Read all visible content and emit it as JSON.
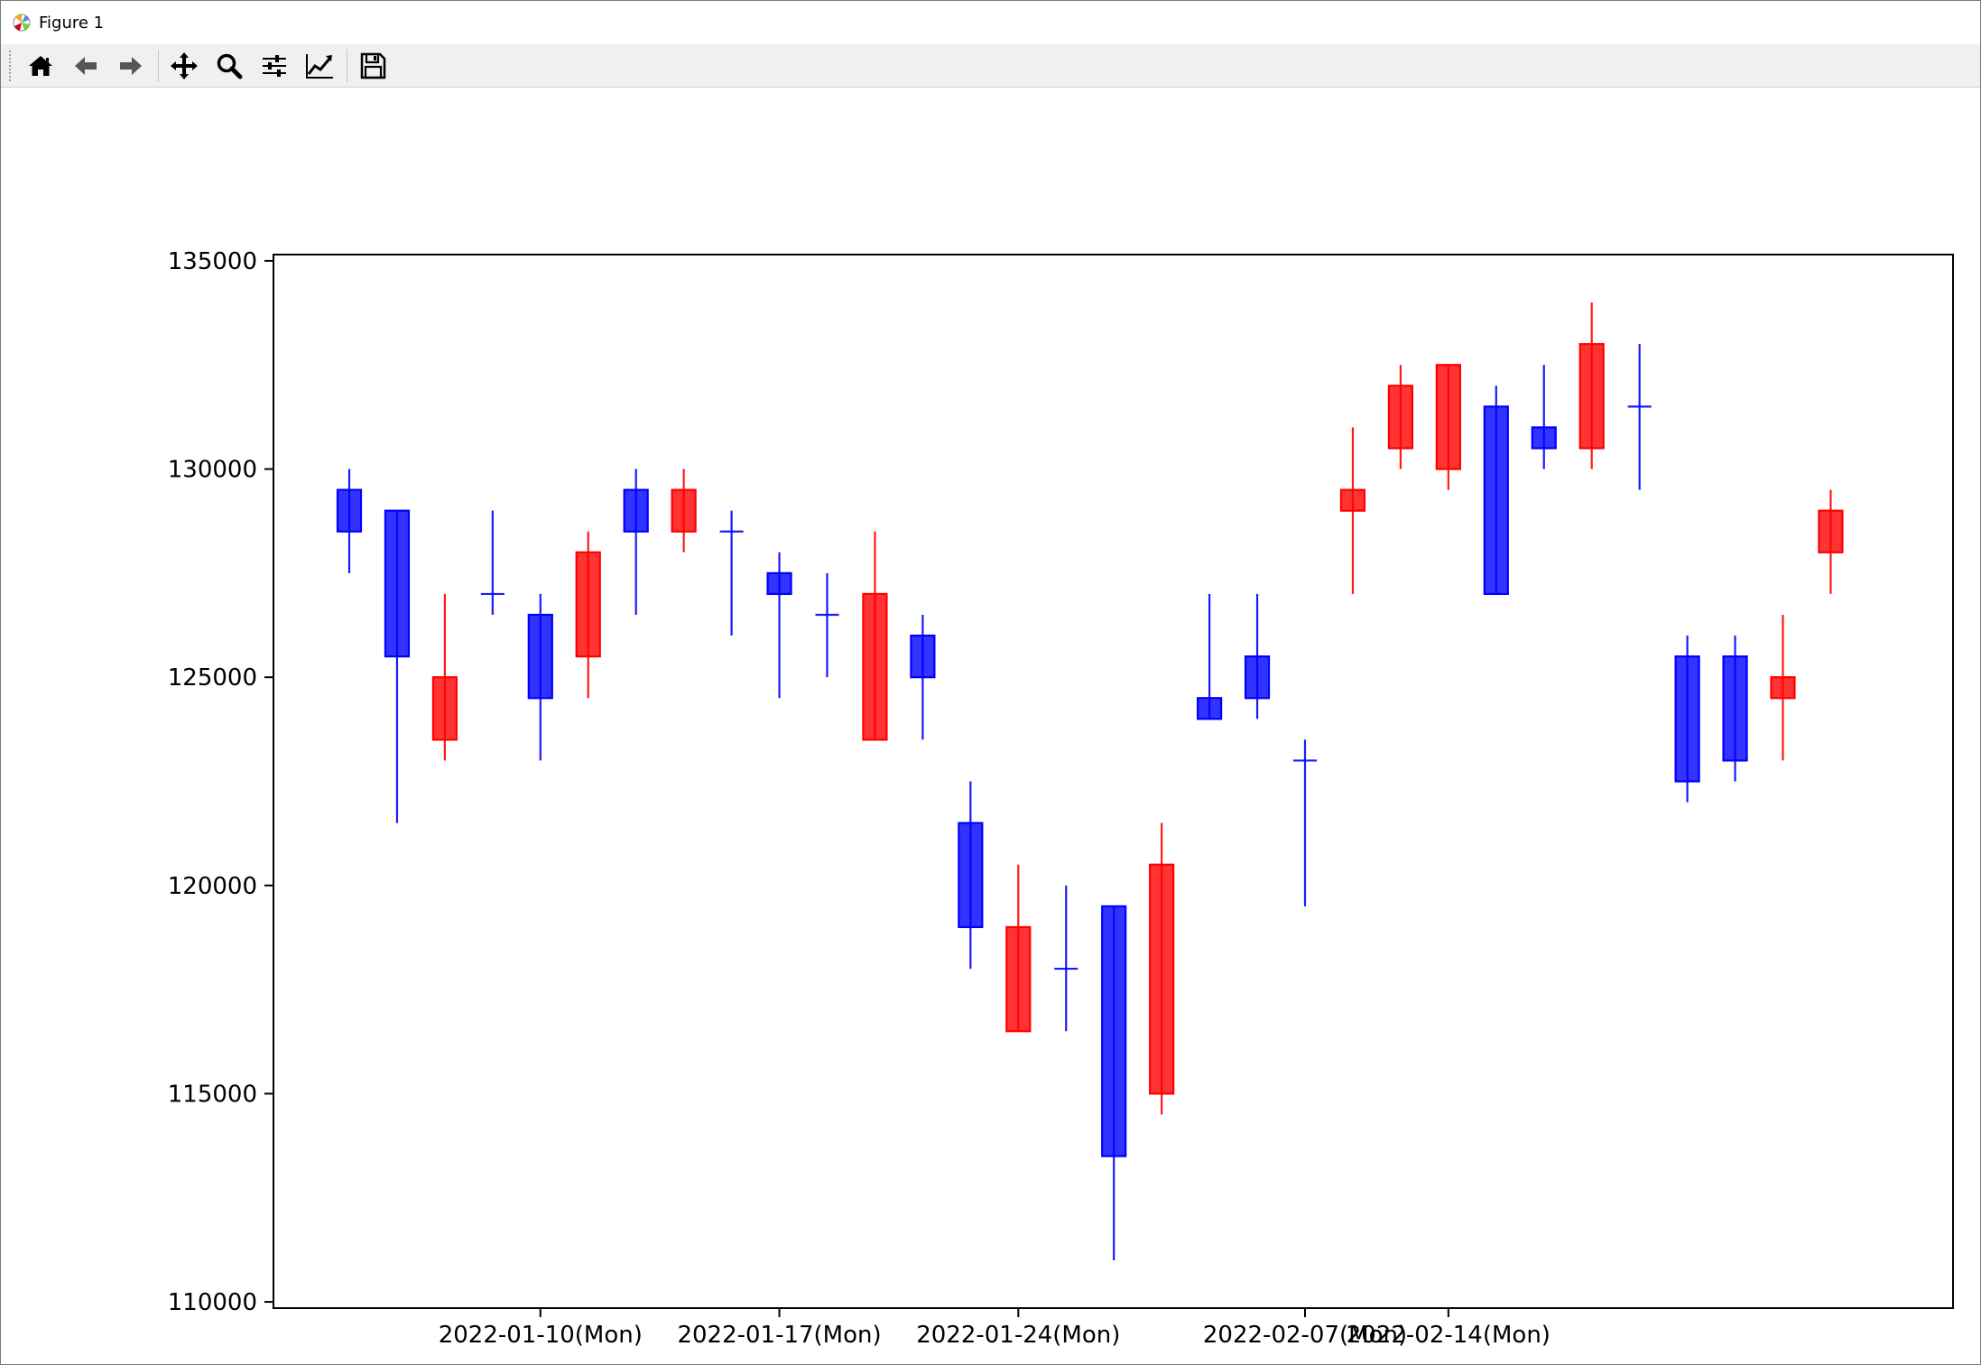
{
  "window": {
    "title": "Figure 1"
  },
  "toolbar": {
    "buttons": [
      {
        "name": "home-icon",
        "tooltip": "Home"
      },
      {
        "name": "back-icon",
        "tooltip": "Back"
      },
      {
        "name": "forward-icon",
        "tooltip": "Forward"
      },
      {
        "name": "pan-icon",
        "tooltip": "Pan"
      },
      {
        "name": "zoom-icon",
        "tooltip": "Zoom"
      },
      {
        "name": "configure-subplots-icon",
        "tooltip": "Subplots"
      },
      {
        "name": "edit-axis-icon",
        "tooltip": "Customize"
      },
      {
        "name": "save-icon",
        "tooltip": "Save"
      }
    ]
  },
  "colors": {
    "up": "#ff0000",
    "down": "#0000ff"
  },
  "chart_data": {
    "type": "candlestick",
    "title": "",
    "xlabel": "",
    "ylabel": "",
    "ylim": [
      110000,
      135000
    ],
    "yticks": [
      110000,
      115000,
      120000,
      125000,
      130000,
      135000
    ],
    "xticks": [
      {
        "index": 4,
        "label": "2022-01-10(Mon)"
      },
      {
        "index": 9,
        "label": "2022-01-17(Mon)"
      },
      {
        "index": 14,
        "label": "2022-01-24(Mon)"
      },
      {
        "index": 20,
        "label": "2022-02-07(Mon)"
      },
      {
        "index": 23,
        "label": "2022-02-14(Mon)"
      }
    ],
    "grid": false,
    "candles": [
      {
        "index": 0,
        "open": 128500,
        "high": 130000,
        "low": 127500,
        "close": 129500,
        "color": "down"
      },
      {
        "index": 1,
        "open": 129000,
        "high": 129000,
        "low": 121500,
        "close": 125500,
        "color": "down"
      },
      {
        "index": 2,
        "open": 123500,
        "high": 127000,
        "low": 123000,
        "close": 125000,
        "color": "up"
      },
      {
        "index": 3,
        "open": 127000,
        "high": 129000,
        "low": 126500,
        "close": 127000,
        "color": "down"
      },
      {
        "index": 4,
        "open": 126500,
        "high": 127000,
        "low": 123000,
        "close": 124500,
        "color": "down"
      },
      {
        "index": 5,
        "open": 125500,
        "high": 128500,
        "low": 124500,
        "close": 128000,
        "color": "up"
      },
      {
        "index": 6,
        "open": 128500,
        "high": 130000,
        "low": 126500,
        "close": 129500,
        "color": "down"
      },
      {
        "index": 7,
        "open": 128500,
        "high": 130000,
        "low": 128000,
        "close": 129500,
        "color": "up"
      },
      {
        "index": 8,
        "open": 128500,
        "high": 129000,
        "low": 126000,
        "close": 128500,
        "color": "down"
      },
      {
        "index": 9,
        "open": 127500,
        "high": 128000,
        "low": 124500,
        "close": 127000,
        "color": "down"
      },
      {
        "index": 10,
        "open": 126500,
        "high": 127500,
        "low": 125000,
        "close": 126500,
        "color": "down"
      },
      {
        "index": 11,
        "open": 123500,
        "high": 128500,
        "low": 123500,
        "close": 127000,
        "color": "up"
      },
      {
        "index": 12,
        "open": 126000,
        "high": 126500,
        "low": 123500,
        "close": 125000,
        "color": "down"
      },
      {
        "index": 13,
        "open": 121500,
        "high": 122500,
        "low": 118000,
        "close": 119000,
        "color": "down"
      },
      {
        "index": 14,
        "open": 116500,
        "high": 120500,
        "low": 116500,
        "close": 119000,
        "color": "up"
      },
      {
        "index": 15,
        "open": 118000,
        "high": 120000,
        "low": 116500,
        "close": 118000,
        "color": "down"
      },
      {
        "index": 16,
        "open": 119500,
        "high": 119500,
        "low": 111000,
        "close": 113500,
        "color": "down"
      },
      {
        "index": 17,
        "open": 115000,
        "high": 121500,
        "low": 114500,
        "close": 120500,
        "color": "up"
      },
      {
        "index": 18,
        "open": 124500,
        "high": 127000,
        "low": 124000,
        "close": 124000,
        "color": "down"
      },
      {
        "index": 19,
        "open": 125500,
        "high": 127000,
        "low": 124000,
        "close": 124500,
        "color": "down"
      },
      {
        "index": 20,
        "open": 123000,
        "high": 123500,
        "low": 119500,
        "close": 123000,
        "color": "down"
      },
      {
        "index": 21,
        "open": 129000,
        "high": 131000,
        "low": 127000,
        "close": 129500,
        "color": "up"
      },
      {
        "index": 22,
        "open": 130500,
        "high": 132500,
        "low": 130000,
        "close": 132000,
        "color": "up"
      },
      {
        "index": 23,
        "open": 130000,
        "high": 132500,
        "low": 129500,
        "close": 132500,
        "color": "up"
      },
      {
        "index": 24,
        "open": 131500,
        "high": 132000,
        "low": 127000,
        "close": 127000,
        "color": "down"
      },
      {
        "index": 25,
        "open": 131000,
        "high": 132500,
        "low": 130000,
        "close": 130500,
        "color": "down"
      },
      {
        "index": 26,
        "open": 130500,
        "high": 134000,
        "low": 130000,
        "close": 133000,
        "color": "up"
      },
      {
        "index": 27,
        "open": 131500,
        "high": 133000,
        "low": 129500,
        "close": 131500,
        "color": "down"
      },
      {
        "index": 28,
        "open": 125500,
        "high": 126000,
        "low": 122000,
        "close": 122500,
        "color": "down"
      },
      {
        "index": 29,
        "open": 125500,
        "high": 126000,
        "low": 122500,
        "close": 123000,
        "color": "down"
      },
      {
        "index": 30,
        "open": 124500,
        "high": 126500,
        "low": 123000,
        "close": 125000,
        "color": "up"
      },
      {
        "index": 31,
        "open": 128000,
        "high": 129500,
        "low": 127000,
        "close": 129000,
        "color": "up"
      }
    ]
  }
}
